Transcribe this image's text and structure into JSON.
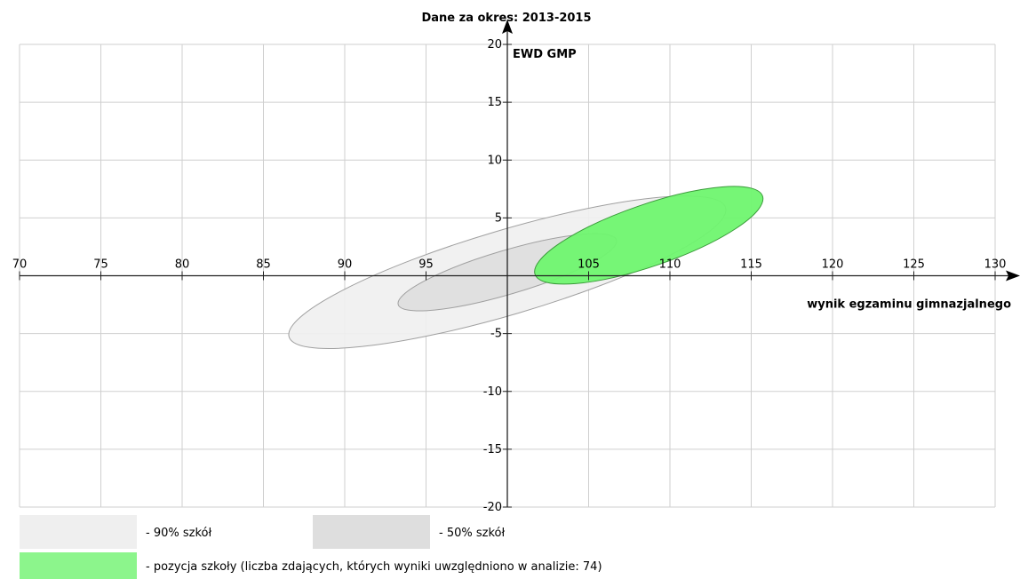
{
  "chart_data": {
    "type": "scatter",
    "title": "Dane za okres: 2013-2015",
    "xlabel": "wynik egzaminu gimnazjalnego",
    "ylabel": "EWD GMP",
    "xlim": [
      70,
      130
    ],
    "ylim": [
      -20,
      20
    ],
    "x_ticks": [
      70,
      75,
      80,
      85,
      90,
      95,
      105,
      110,
      115,
      120,
      125,
      130
    ],
    "y_ticks": [
      20,
      15,
      10,
      5,
      -5,
      -10,
      -15,
      -20
    ],
    "grid": true,
    "ellipses": [
      {
        "name": "90% szkół",
        "cx": 100,
        "cy": 0.3,
        "rx": 14,
        "ry": 2.6,
        "angle_deg": 16.5,
        "fill": "#efefef",
        "stroke": "#a0a0a0"
      },
      {
        "name": "50% szkół",
        "cx": 100,
        "cy": 0.3,
        "rx": 7.0,
        "ry": 1.35,
        "angle_deg": 16.5,
        "fill": "#dedede",
        "stroke": "#a0a0a0"
      },
      {
        "name": "pozycja szkoły",
        "cx": 108.7,
        "cy": 3.5,
        "rx": 7.4,
        "ry": 1.9,
        "angle_deg": 19,
        "fill": "#6ff56f",
        "stroke": "#3a9a3a"
      }
    ],
    "legend": [
      {
        "label": "- 90% szkół",
        "color": "#efefef"
      },
      {
        "label": "- 50% szkół",
        "color": "#dedede"
      },
      {
        "label": "- pozycja szkoły (liczba zdających, których wyniki uwzględniono w analizie: 74)",
        "color": "#8cf58c"
      }
    ],
    "legend_position": "bottom"
  }
}
